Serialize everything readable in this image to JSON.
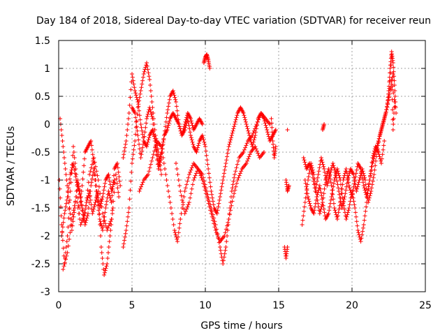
{
  "chart_data": {
    "type": "scatter",
    "title": "Day 184 of 2018, Sidereal Day-to-day VTEC variation (SDTVAR) for receiver reun",
    "xlabel": "GPS time / hours",
    "ylabel": "SDTVAR / TECUs",
    "xlim": [
      0,
      25
    ],
    "ylim": [
      -3,
      1.5
    ],
    "xticks": [
      0,
      5,
      10,
      15,
      20,
      25
    ],
    "xtick_labels": [
      "0",
      "5",
      "10",
      "15",
      "20",
      "25"
    ],
    "yticks": [
      -3,
      -2.5,
      -2,
      -1.5,
      -1,
      -0.5,
      0,
      0.5,
      1,
      1.5
    ],
    "ytick_labels": [
      "-3",
      "-2.5",
      "-2",
      "-1.5",
      "-1",
      "-0.5",
      "0",
      "0.5",
      "1",
      "1.5"
    ],
    "grid": true,
    "marker": "+",
    "color": "#ff0000",
    "tracks": [
      {
        "x": [
          0.05,
          0.2,
          0.4,
          0.6,
          0.8,
          1.0,
          1.2,
          1.4,
          1.6,
          1.8,
          2.0,
          2.2,
          2.4,
          2.6,
          2.8,
          3.0,
          3.2,
          3.4,
          3.6,
          3.8
        ],
        "y": [
          -1.0,
          -1.8,
          -2.5,
          -2.0,
          -1.2,
          -0.4,
          -0.9,
          -1.6,
          -1.1,
          -0.5,
          -0.4,
          -0.3,
          -0.7,
          -1.2,
          -1.5,
          -1.3,
          -1.0,
          -0.9,
          -1.2,
          -1.0
        ]
      },
      {
        "x": [
          0.1,
          0.3,
          0.5,
          0.7,
          0.9,
          1.1,
          1.3,
          1.5,
          1.7,
          1.9,
          2.1,
          2.3,
          2.5,
          2.7,
          2.9,
          3.1,
          3.3,
          3.5,
          3.7
        ],
        "y": [
          0.1,
          -0.4,
          -0.9,
          -1.4,
          -1.9,
          -1.5,
          -1.0,
          -1.3,
          -1.7,
          -1.4,
          -1.2,
          -1.6,
          -1.4,
          -1.2,
          -2.2,
          -2.7,
          -2.5,
          -2.0,
          -1.5
        ]
      },
      {
        "x": [
          0.2,
          0.4,
          0.6,
          0.8,
          1.0,
          1.2,
          1.4,
          1.6,
          1.8,
          2.0,
          2.2,
          2.4,
          2.6,
          2.8,
          3.0,
          3.2,
          3.4,
          3.6,
          3.8,
          4.0,
          4.2
        ],
        "y": [
          -2.0,
          -1.6,
          -1.3,
          -0.9,
          -0.7,
          -1.0,
          -1.2,
          -1.5,
          -1.8,
          -1.6,
          -1.1,
          -0.8,
          -1.3,
          -1.7,
          -1.9,
          -1.5,
          -1.2,
          -1.4,
          -0.8,
          -0.7,
          -1.1
        ]
      },
      {
        "x": [
          0.3,
          0.6,
          0.9,
          1.2,
          1.5,
          1.8,
          2.1,
          2.4,
          2.7,
          3.0,
          3.3,
          3.6,
          3.9,
          4.1
        ],
        "y": [
          -2.6,
          -2.3,
          -1.7,
          -1.3,
          -1.8,
          -1.6,
          -0.9,
          -0.6,
          -1.0,
          -1.6,
          -1.9,
          -1.7,
          -0.9,
          -1.3
        ]
      },
      {
        "x": [
          4.4,
          4.6,
          4.8,
          5.0,
          5.2,
          5.4,
          5.6,
          5.8,
          6.0,
          6.2,
          6.4,
          6.6,
          6.8,
          7.0,
          7.2,
          7.4,
          7.6,
          7.8,
          8.0,
          8.2,
          8.4,
          8.6,
          8.8,
          9.0,
          9.2,
          9.4,
          9.6,
          9.8
        ],
        "y": [
          -0.6,
          -0.3,
          0.2,
          0.9,
          0.6,
          0.4,
          0.0,
          -0.3,
          -0.4,
          -0.2,
          -0.1,
          -0.3,
          -0.7,
          -0.5,
          -0.2,
          -0.1,
          0.1,
          0.2,
          0.1,
          0.0,
          -0.2,
          0.0,
          0.2,
          0.1,
          -0.1,
          0.0,
          0.1,
          0.0
        ]
      },
      {
        "x": [
          4.4,
          4.6,
          4.8,
          5.0,
          5.2,
          5.4,
          5.6,
          5.8,
          6.0,
          6.2,
          6.4,
          6.6,
          6.8,
          7.0
        ],
        "y": [
          -2.2,
          -1.9,
          -1.5,
          -0.7,
          -0.3,
          0.3,
          0.6,
          0.9,
          1.1,
          0.8,
          0.3,
          -0.2,
          -0.5,
          -0.9
        ]
      },
      {
        "x": [
          5.0,
          5.2,
          5.4,
          5.6,
          5.8,
          6.0,
          6.2,
          6.4,
          6.6,
          6.8,
          7.0,
          7.2,
          7.4,
          7.6,
          7.8,
          8.0,
          8.2,
          8.4,
          8.6,
          8.8,
          9.0,
          9.2,
          9.4,
          9.6,
          9.8,
          10.0,
          10.2,
          10.4,
          10.6,
          10.8,
          11.0,
          11.2,
          11.4,
          11.6,
          11.8,
          12.0,
          12.2,
          12.4,
          12.6,
          12.8,
          13.0,
          13.2,
          13.4,
          13.6,
          13.8,
          14.0,
          14.2,
          14.4,
          14.6,
          14.8
        ],
        "y": [
          0.3,
          0.2,
          -0.2,
          -0.6,
          -0.3,
          0.1,
          0.3,
          0.1,
          -0.4,
          -0.8,
          -0.6,
          -0.2,
          0.2,
          0.5,
          0.6,
          0.4,
          0.0,
          -0.2,
          -0.1,
          0.1,
          -0.2,
          -0.4,
          -0.5,
          -0.3,
          -0.2,
          -0.4,
          -0.8,
          -1.2,
          -1.5,
          -1.6,
          -1.3,
          -1.0,
          -0.7,
          -0.4,
          -0.2,
          0.0,
          0.2,
          0.3,
          0.2,
          0.0,
          -0.2,
          -0.4,
          -0.2,
          0.1,
          0.2,
          0.1,
          -0.1,
          -0.3,
          -0.2,
          -0.1
        ]
      },
      {
        "x": [
          5.5,
          5.8,
          6.1,
          6.4,
          6.7,
          7.0,
          7.3,
          7.6,
          7.9,
          8.1,
          8.3,
          8.6,
          8.9,
          9.2,
          9.5,
          9.8,
          10.1,
          10.4,
          10.7,
          11.0,
          11.3,
          11.6,
          11.9,
          12.2,
          12.5,
          12.8,
          13.1,
          13.4,
          13.7,
          14.0
        ],
        "y": [
          -1.2,
          -1.0,
          -0.9,
          -0.6,
          -0.3,
          -0.4,
          -0.9,
          -1.4,
          -1.9,
          -2.1,
          -1.7,
          -1.2,
          -0.9,
          -0.7,
          -0.8,
          -1.0,
          -1.3,
          -1.6,
          -1.9,
          -2.1,
          -2.0,
          -1.7,
          -1.3,
          -1.0,
          -0.8,
          -0.7,
          -0.5,
          -0.4,
          -0.6,
          -0.5
        ]
      },
      {
        "x": [
          8.0,
          8.3,
          8.6,
          8.9,
          9.2,
          9.5,
          9.8,
          10.1,
          10.4,
          10.7,
          11.0,
          11.2,
          11.4,
          11.6,
          11.8,
          12.0,
          12.3,
          12.6,
          12.9,
          13.2,
          13.5,
          13.8,
          14.1,
          14.4
        ],
        "y": [
          -0.7,
          -1.2,
          -1.6,
          -1.4,
          -1.0,
          -0.8,
          -0.9,
          -1.2,
          -1.5,
          -1.8,
          -2.2,
          -2.5,
          -2.2,
          -1.7,
          -1.2,
          -0.9,
          -0.6,
          -0.5,
          -0.3,
          -0.2,
          0.0,
          0.2,
          0.1,
          0.0
        ]
      },
      {
        "x": [
          9.9,
          10.0,
          10.1,
          10.2,
          10.3
        ],
        "y": [
          1.1,
          1.2,
          1.25,
          1.15,
          1.0
        ]
      },
      {
        "x": [
          14.5,
          14.6,
          14.7,
          14.8
        ],
        "y": [
          0.1,
          -0.3,
          -0.6,
          -0.4
        ]
      },
      {
        "x": [
          15.4,
          15.5,
          15.6
        ],
        "y": [
          -2.2,
          -2.4,
          -2.2
        ]
      },
      {
        "x": [
          15.5,
          15.6,
          15.7
        ],
        "y": [
          -1.0,
          -1.2,
          -1.1
        ]
      },
      {
        "x": [
          15.6
        ],
        "y": [
          -0.1
        ]
      },
      {
        "x": [
          16.6,
          16.8,
          17.0,
          17.2,
          17.4,
          17.6,
          17.8,
          18.0,
          18.2,
          18.4,
          18.6,
          18.8,
          19.0,
          19.2,
          19.4,
          19.6,
          19.8,
          20.0,
          20.2,
          20.4,
          20.6,
          20.8,
          21.0,
          21.2,
          21.4,
          21.6,
          21.8,
          22.0,
          22.2
        ],
        "y": [
          -1.8,
          -1.4,
          -1.0,
          -0.7,
          -0.9,
          -1.3,
          -1.6,
          -1.4,
          -1.0,
          -0.8,
          -1.1,
          -1.5,
          -1.7,
          -1.4,
          -1.0,
          -0.8,
          -1.1,
          -1.3,
          -1.0,
          -0.7,
          -0.8,
          -1.1,
          -1.3,
          -1.0,
          -0.6,
          -0.4,
          -0.5,
          -0.7,
          -0.3
        ]
      },
      {
        "x": [
          16.8,
          17.0,
          17.2,
          17.4,
          17.6,
          17.8,
          18.0,
          18.2,
          18.4,
          18.6,
          18.8,
          19.0,
          19.2,
          19.4,
          19.6,
          19.8,
          20.0,
          20.2,
          20.4,
          20.6,
          20.8,
          21.0,
          21.2,
          21.4,
          21.6,
          21.8,
          22.0,
          22.2,
          22.4,
          22.6,
          22.8
        ],
        "y": [
          -1.0,
          -1.3,
          -1.5,
          -1.6,
          -1.3,
          -1.1,
          -1.4,
          -1.7,
          -1.6,
          -1.3,
          -1.0,
          -0.8,
          -1.0,
          -1.4,
          -1.7,
          -1.5,
          -1.2,
          -1.5,
          -1.9,
          -2.1,
          -1.8,
          -1.4,
          -1.0,
          -0.7,
          -0.5,
          -0.3,
          -0.1,
          0.1,
          0.3,
          0.6,
          0.9
        ]
      },
      {
        "x": [
          16.7,
          16.9,
          17.1,
          17.3,
          17.5,
          17.7,
          17.9,
          18.1,
          18.3,
          18.5,
          18.7,
          18.9,
          19.1,
          19.3,
          19.5,
          19.7,
          19.9,
          20.1,
          20.3,
          20.5,
          20.7,
          20.9,
          21.1,
          21.3,
          21.5,
          21.7,
          21.9,
          22.1,
          22.3,
          22.5,
          22.7
        ],
        "y": [
          -0.6,
          -0.8,
          -0.7,
          -0.9,
          -1.2,
          -0.9,
          -0.6,
          -0.8,
          -1.1,
          -0.9,
          -0.7,
          -0.9,
          -1.2,
          -1.5,
          -1.3,
          -1.0,
          -0.8,
          -0.9,
          -1.2,
          -1.0,
          -0.8,
          -1.0,
          -1.4,
          -1.2,
          -0.9,
          -0.5,
          -0.2,
          0.0,
          0.2,
          0.5,
          1.2
        ]
      },
      {
        "x": [
          22.4,
          22.5,
          22.6,
          22.7,
          22.8,
          22.9,
          23.0,
          22.7,
          22.8,
          22.9
        ],
        "y": [
          0.3,
          0.6,
          1.0,
          1.3,
          1.1,
          0.7,
          0.2,
          0.8,
          -0.1,
          0.4
        ]
      },
      {
        "x": [
          18.0,
          18.1
        ],
        "y": [
          -0.1,
          0.0
        ]
      }
    ]
  }
}
